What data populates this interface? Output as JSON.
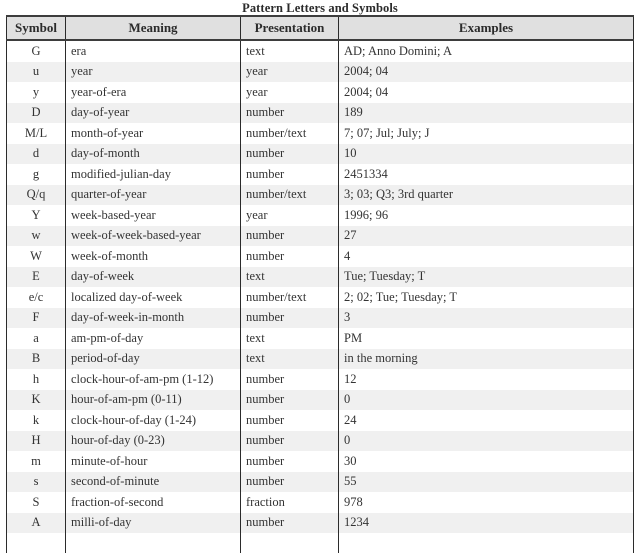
{
  "title": "Pattern Letters and Symbols",
  "table": {
    "columns": [
      "Symbol",
      "Meaning",
      "Presentation",
      "Examples"
    ],
    "rows": [
      [
        "G",
        "era",
        "text",
        "AD; Anno Domini; A"
      ],
      [
        "u",
        "year",
        "year",
        "2004; 04"
      ],
      [
        "y",
        "year-of-era",
        "year",
        "2004; 04"
      ],
      [
        "D",
        "day-of-year",
        "number",
        "189"
      ],
      [
        "M/L",
        "month-of-year",
        "number/text",
        "7; 07; Jul; July; J"
      ],
      [
        "d",
        "day-of-month",
        "number",
        "10"
      ],
      [
        "g",
        "modified-julian-day",
        "number",
        "2451334"
      ],
      [
        "Q/q",
        "quarter-of-year",
        "number/text",
        "3; 03; Q3; 3rd quarter"
      ],
      [
        "Y",
        "week-based-year",
        "year",
        "1996; 96"
      ],
      [
        "w",
        "week-of-week-based-year",
        "number",
        "27"
      ],
      [
        "W",
        "week-of-month",
        "number",
        "4"
      ],
      [
        "E",
        "day-of-week",
        "text",
        "Tue; Tuesday; T"
      ],
      [
        "e/c",
        "localized day-of-week",
        "number/text",
        "2; 02; Tue; Tuesday; T"
      ],
      [
        "F",
        "day-of-week-in-month",
        "number",
        "3"
      ],
      [
        "a",
        "am-pm-of-day",
        "text",
        "PM"
      ],
      [
        "B",
        "period-of-day",
        "text",
        "in the morning"
      ],
      [
        "h",
        "clock-hour-of-am-pm (1-12)",
        "number",
        "12"
      ],
      [
        "K",
        "hour-of-am-pm (0-11)",
        "number",
        "0"
      ],
      [
        "k",
        "clock-hour-of-day (1-24)",
        "number",
        "24"
      ],
      [
        "H",
        "hour-of-day (0-23)",
        "number",
        "0"
      ],
      [
        "m",
        "minute-of-hour",
        "number",
        "30"
      ],
      [
        "s",
        "second-of-minute",
        "number",
        "55"
      ],
      [
        "S",
        "fraction-of-second",
        "fraction",
        "978"
      ],
      [
        "A",
        "milli-of-day",
        "number",
        "1234"
      ]
    ]
  },
  "colors": {
    "header_bg": "#e0e0e0",
    "row_alt_bg": "#f0f0f0",
    "border": "#2b2b2b",
    "border_heavy": "#3d3d3d",
    "text": "#333333"
  }
}
